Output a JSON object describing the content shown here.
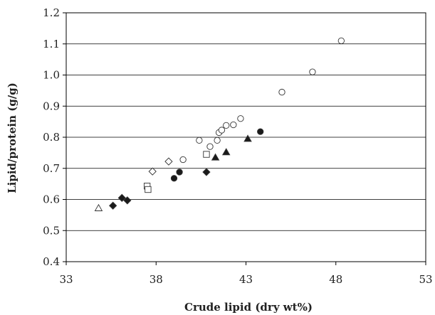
{
  "chart_data": {
    "type": "scatter",
    "title": "",
    "xlabel": "Crude lipid (dry wt%)",
    "ylabel": "Lipid/protein (g/g)",
    "xlim": [
      33,
      53
    ],
    "ylim": [
      0.4,
      1.2
    ],
    "x_ticks": [
      "33",
      "38",
      "43",
      "48",
      "53"
    ],
    "y_ticks": [
      "0.4",
      "0.5",
      "0.6",
      "0.7",
      "0.8",
      "0.9",
      "1.0",
      "1.1",
      "1.2"
    ],
    "grid": "horizontal",
    "legend": "none",
    "series": [
      {
        "marker": "open-circle",
        "points": [
          [
            39.5,
            0.728
          ],
          [
            40.4,
            0.79
          ],
          [
            41.0,
            0.77
          ],
          [
            41.4,
            0.79
          ],
          [
            41.5,
            0.815
          ],
          [
            41.65,
            0.823
          ],
          [
            41.9,
            0.838
          ],
          [
            42.3,
            0.84
          ],
          [
            42.7,
            0.86
          ],
          [
            45.0,
            0.945
          ],
          [
            46.7,
            1.01
          ],
          [
            48.3,
            1.11
          ]
        ]
      },
      {
        "marker": "filled-circle",
        "points": [
          [
            39.0,
            0.668
          ],
          [
            39.3,
            0.688
          ],
          [
            43.8,
            0.818
          ]
        ]
      },
      {
        "marker": "open-square",
        "points": [
          [
            37.5,
            0.643
          ],
          [
            37.55,
            0.632
          ],
          [
            40.8,
            0.745
          ]
        ]
      },
      {
        "marker": "open-diamond",
        "points": [
          [
            37.8,
            0.69
          ],
          [
            38.7,
            0.722
          ]
        ]
      },
      {
        "marker": "filled-diamond",
        "points": [
          [
            35.6,
            0.58
          ],
          [
            36.1,
            0.605
          ],
          [
            36.4,
            0.597
          ],
          [
            40.8,
            0.688
          ]
        ]
      },
      {
        "marker": "open-triangle",
        "points": [
          [
            34.8,
            0.572
          ]
        ]
      },
      {
        "marker": "filled-triangle",
        "points": [
          [
            41.3,
            0.735
          ],
          [
            41.9,
            0.752
          ],
          [
            43.1,
            0.795
          ]
        ]
      }
    ]
  }
}
